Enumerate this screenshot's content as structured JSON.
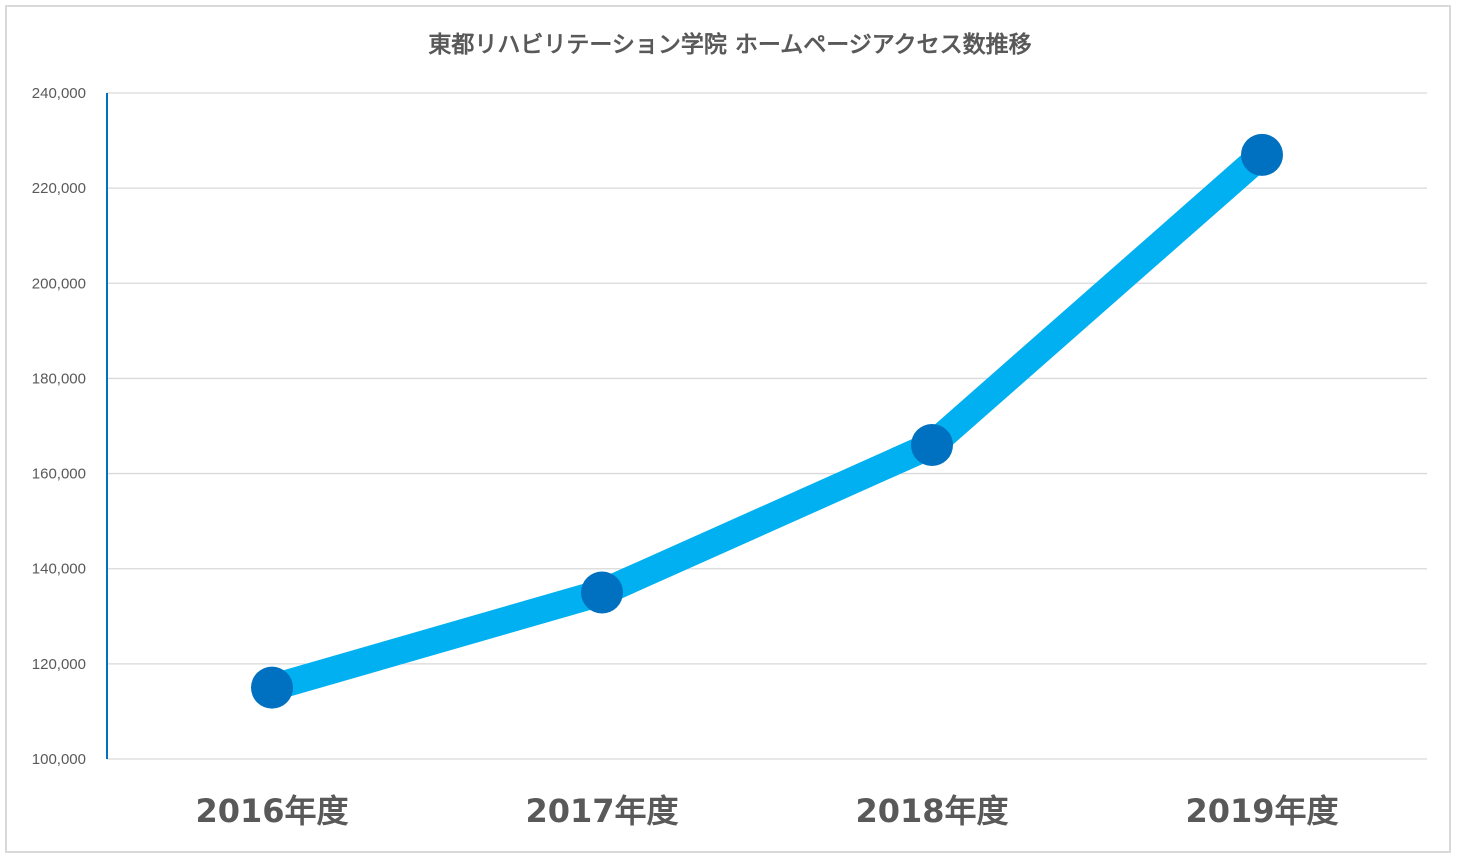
{
  "chart_data": {
    "type": "line",
    "title": "東都リハビリテーション学院 ホームページアクセス数推移",
    "categories": [
      "2016年度",
      "2017年度",
      "2018年度",
      "2019年度"
    ],
    "series": [
      {
        "values": [
          115000,
          135000,
          166000,
          227000
        ]
      }
    ],
    "ylim": [
      100000,
      240000
    ],
    "yticks": [
      100000,
      120000,
      140000,
      160000,
      180000,
      200000,
      220000,
      240000
    ],
    "ytick_labels": [
      "100,000",
      "120,000",
      "140,000",
      "160,000",
      "180,000",
      "200,000",
      "220,000",
      "240,000"
    ],
    "grid": true,
    "legend": "none",
    "colors": {
      "line": "#00b0f0",
      "marker": "#0070c0",
      "yaxis": "#0070c0",
      "grid": "#d9d9d9",
      "text": "#595959"
    }
  }
}
